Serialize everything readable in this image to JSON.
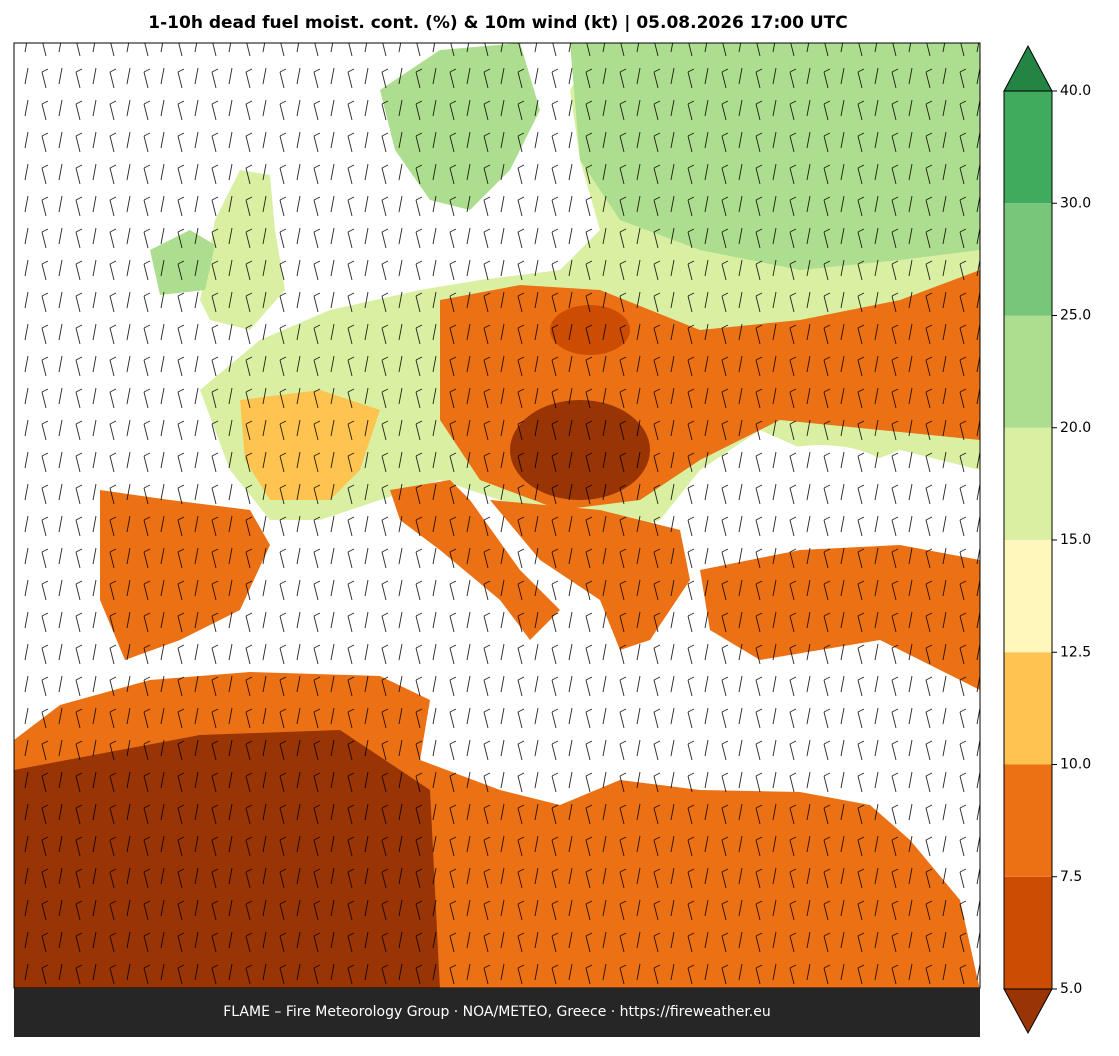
{
  "title": "1-10h dead fuel moist. cont. (%) & 10m wind (kt)  |  05.08.2026 17:00 UTC",
  "footer": "FLAME – Fire Meteorology Group · NOA/METEO, Greece · https://fireweather.eu",
  "colorbar": {
    "ticks": [
      {
        "value": 5,
        "label": "5.0"
      },
      {
        "value": 7.5,
        "label": "7.5"
      },
      {
        "value": 10,
        "label": "10.0"
      },
      {
        "value": 12.5,
        "label": "12.5"
      },
      {
        "value": 15,
        "label": "15.0"
      },
      {
        "value": 20,
        "label": "20.0"
      },
      {
        "value": 25,
        "label": "25.0"
      },
      {
        "value": 30,
        "label": "30.0"
      },
      {
        "value": 40,
        "label": "40.0"
      }
    ],
    "colors": [
      "#cc4c02",
      "#ec7014",
      "#fec44f",
      "#fff7bc",
      "#d9f0a3",
      "#addd8e",
      "#78c679",
      "#41ab5d"
    ],
    "under_color": "#993404",
    "over_color": "#238443"
  }
}
